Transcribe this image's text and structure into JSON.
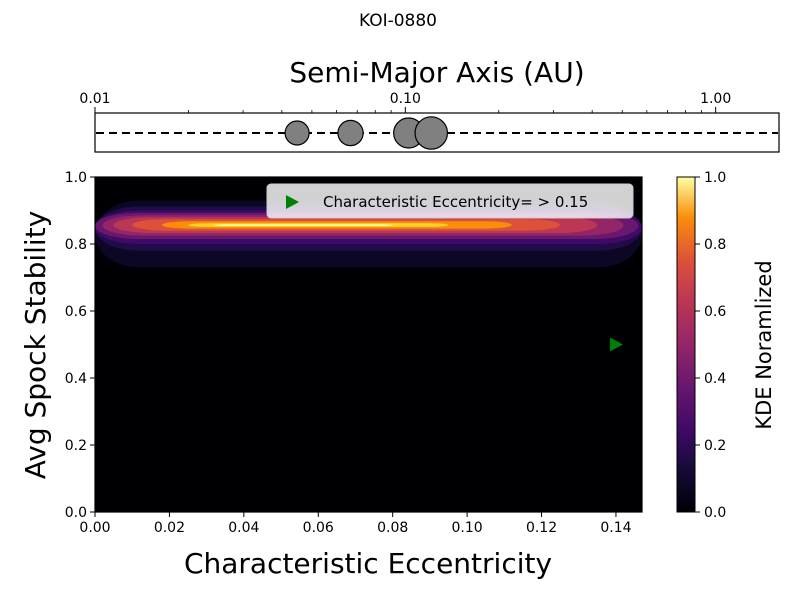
{
  "chart_data": [
    {
      "type": "scatter",
      "title": "KOI-0880",
      "xlabel": "Semi-Major Axis (AU)",
      "xscale": "log",
      "xlim": [
        0.01,
        1.6
      ],
      "x_ticks": [
        0.01,
        0.1,
        1.0
      ],
      "x_tick_labels": [
        "0.01",
        "0.10",
        "1.00"
      ],
      "planets": [
        {
          "a": 0.0448,
          "size": 1.0
        },
        {
          "a": 0.0666,
          "size": 1.05
        },
        {
          "a": 0.1025,
          "size": 1.25
        },
        {
          "a": 0.1212,
          "size": 1.35
        }
      ],
      "line_style": "dashed"
    },
    {
      "type": "heatmap",
      "xlabel": "Characteristic Eccentricity",
      "ylabel": "Avg Spock Stability",
      "xlim": [
        0.0,
        0.147
      ],
      "ylim": [
        0.0,
        1.0
      ],
      "x_ticks": [
        0.0,
        0.02,
        0.04,
        0.06,
        0.08,
        0.1,
        0.12,
        0.14
      ],
      "x_tick_labels": [
        "0.00",
        "0.02",
        "0.04",
        "0.06",
        "0.08",
        "0.10",
        "0.12",
        "0.14"
      ],
      "y_ticks": [
        0.0,
        0.2,
        0.4,
        0.6,
        0.8,
        1.0
      ],
      "y_tick_labels": [
        "0.0",
        "0.2",
        "0.4",
        "0.6",
        "0.8",
        "1.0"
      ],
      "colormap": "inferno",
      "density_peak": {
        "x": 0.04,
        "y": 0.855
      },
      "density_band_y": [
        0.73,
        0.93
      ],
      "marker": {
        "x": 0.14,
        "y": 0.5,
        "color": "#008000",
        "shape": "triangle-right"
      },
      "legend": {
        "label": "Characteristic Eccentricity= > 0.15",
        "position": "upper-right"
      },
      "colorbar": {
        "label": "KDE Noramlized",
        "range": [
          0.0,
          1.0
        ],
        "ticks": [
          0.0,
          0.2,
          0.4,
          0.6,
          0.8,
          1.0
        ],
        "tick_labels": [
          "0.0",
          "0.2",
          "0.4",
          "0.6",
          "0.8",
          "1.0"
        ]
      }
    }
  ]
}
